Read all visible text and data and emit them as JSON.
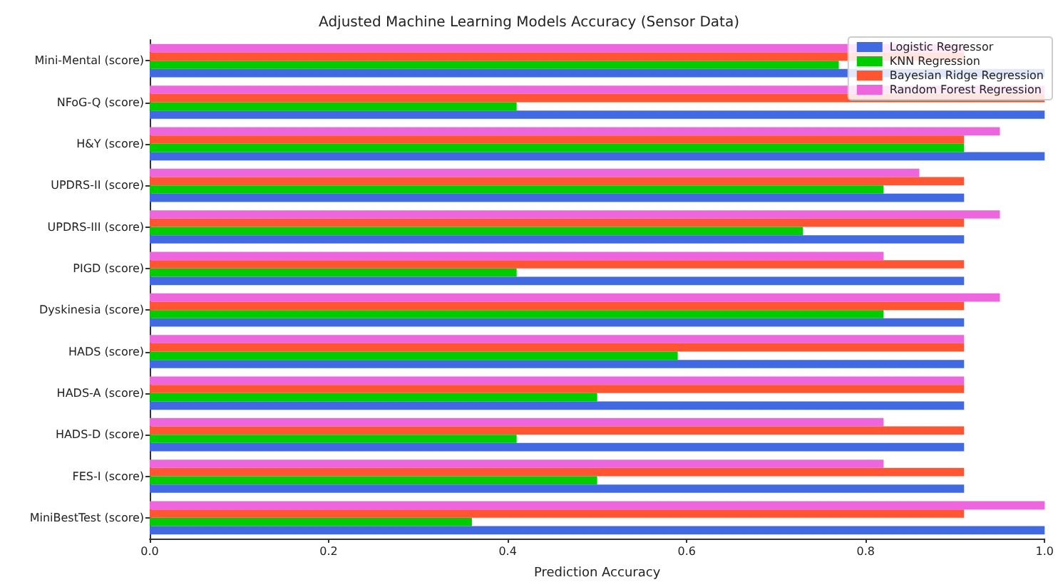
{
  "chart_data": {
    "type": "bar",
    "orientation": "horizontal",
    "title": "Adjusted Machine Learning Models Accuracy (Sensor Data)",
    "xlabel": "Prediction Accuracy",
    "categories": [
      "Mini-Mental (score)",
      "NFoG-Q (score)",
      "H&Y (score)",
      "UPDRS-II (score)",
      "UPDRS-III (score)",
      "PIGD (score)",
      "Dyskinesia (score)",
      "HADS (score)",
      "HADS-A (score)",
      "HADS-D (score)",
      "FES-I (score)",
      "MiniBestTest (score)"
    ],
    "series": [
      {
        "name": "Logistic Regressor",
        "color": "#4169e1",
        "values": [
          1.0,
          1.0,
          1.0,
          0.91,
          0.91,
          0.91,
          0.91,
          0.91,
          0.91,
          0.91,
          0.91,
          1.0
        ]
      },
      {
        "name": "KNN Regression",
        "color": "#00cc00",
        "values": [
          0.77,
          0.41,
          0.91,
          0.82,
          0.73,
          0.41,
          0.82,
          0.59,
          0.5,
          0.41,
          0.5,
          0.36
        ]
      },
      {
        "name": "Bayesian Ridge Regression",
        "color": "#ff5533",
        "values": [
          0.91,
          1.0,
          0.91,
          0.91,
          0.91,
          0.91,
          0.91,
          0.91,
          0.91,
          0.91,
          0.91,
          0.91
        ]
      },
      {
        "name": "Random Forest Regression",
        "color": "#ee66dd",
        "values": [
          0.91,
          1.0,
          0.95,
          0.86,
          0.95,
          0.82,
          0.95,
          0.91,
          0.91,
          0.82,
          0.82,
          1.0
        ]
      }
    ],
    "xlim": [
      0,
      1.0
    ],
    "xticks": [
      {
        "value": 0,
        "label": "0.0"
      },
      0.2,
      0.4,
      0.6,
      0.8,
      {
        "value": 1,
        "label": "1.0"
      }
    ],
    "grid": false,
    "legend": "top right"
  }
}
